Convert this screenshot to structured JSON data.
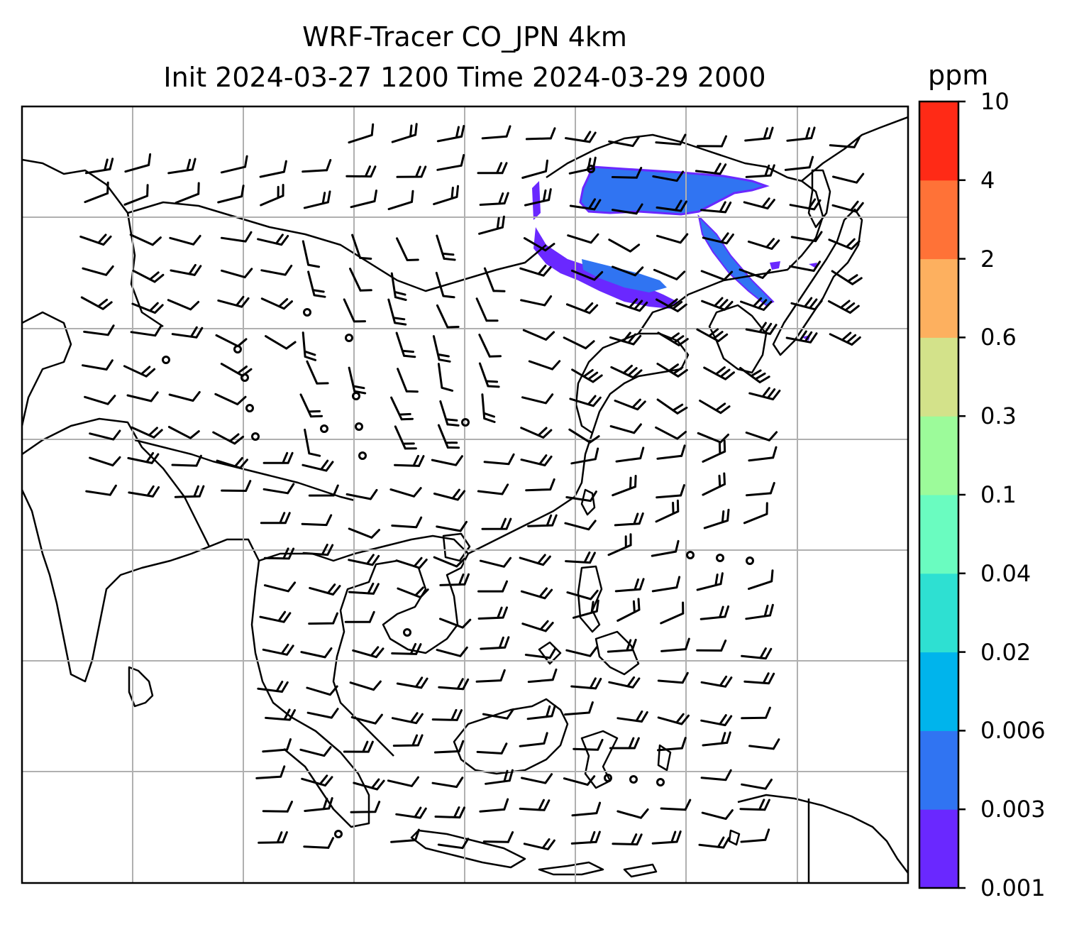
{
  "title": {
    "line1": "WRF-Tracer CO_JPN 4km",
    "line2": "Init 2024-03-27 1200 Time 2024-03-29 2000"
  },
  "colorbar": {
    "unit": "ppm",
    "ticks": [
      "0.001",
      "0.003",
      "0.006",
      "0.02",
      "0.04",
      "0.1",
      "0.3",
      "0.6",
      "2",
      "4",
      "10"
    ],
    "colors": [
      "#6a28ff",
      "#3074f2",
      "#00b4ec",
      "#2ee0d2",
      "#6afcc0",
      "#9cfb9a",
      "#d3e28a",
      "#fdb05f",
      "#ff7237",
      "#ff2a16"
    ]
  },
  "map": {
    "gridlines": true,
    "plume_color": "#3074f2",
    "plume_edge_color": "#6a28ff",
    "coastline_color": "#000000",
    "feature": "wind barbs"
  }
}
